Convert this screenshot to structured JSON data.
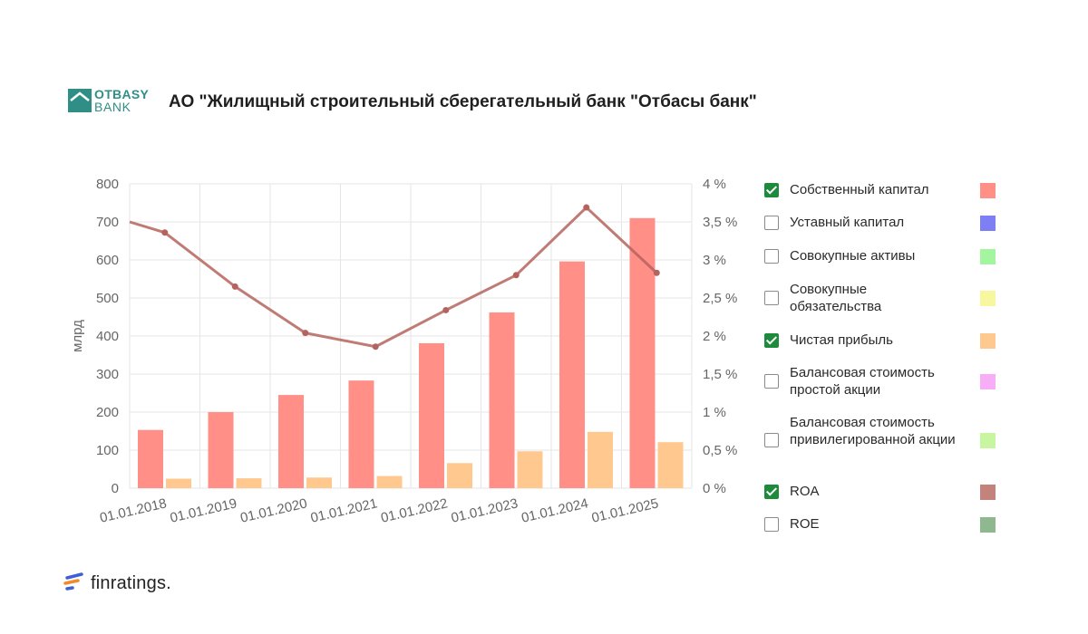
{
  "header": {
    "logo_line1": "OTBASY",
    "logo_line2": "BANK",
    "title": "АО \"Жилищный строительный сберегательный банк \"Отбасы банк\""
  },
  "legend": [
    {
      "label": "Собственный капитал",
      "checked": true,
      "color": "#ff8f87"
    },
    {
      "label": "Уставный капитал",
      "checked": false,
      "color": "#7f7ff5"
    },
    {
      "label": "Совокупные активы",
      "checked": false,
      "color": "#a3f5a0"
    },
    {
      "label": "Совокупные обязательства",
      "checked": false,
      "color": "#f7f7a0"
    },
    {
      "label": "Чистая прибыль",
      "checked": true,
      "color": "#ffc88f"
    },
    {
      "label": "Балансовая стоимость простой акции",
      "checked": false,
      "color": "#f7aef7"
    },
    {
      "label": "Балансовая стоимость привилегированной акции",
      "checked": false,
      "color": "#c8f5a0"
    },
    {
      "label": "ROA",
      "checked": true,
      "color": "#c4827c"
    },
    {
      "label": "ROE",
      "checked": false,
      "color": "#8fb890"
    }
  ],
  "footer": {
    "brand": "finratings."
  },
  "chart_data": {
    "type": "bar",
    "categories": [
      "01.01.2018",
      "01.01.2019",
      "01.01.2020",
      "01.01.2021",
      "01.01.2022",
      "01.01.2023",
      "01.01.2024",
      "01.01.2025"
    ],
    "ylabel": "млрд",
    "ylim": [
      0,
      800
    ],
    "yticks": [
      "0",
      "100",
      "200",
      "300",
      "400",
      "500",
      "600",
      "700",
      "800"
    ],
    "y2lim": [
      0,
      4
    ],
    "y2ticks": [
      "0 %",
      "0,5 %",
      "1 %",
      "1,5 %",
      "2 %",
      "2,5 %",
      "3 %",
      "3,5 %",
      "4 %"
    ],
    "grid": true,
    "series": [
      {
        "name": "Собственный капитал",
        "type": "bar",
        "axis": "left",
        "color": "#ff8f87",
        "values": [
          153,
          200,
          245,
          283,
          381,
          462,
          596,
          710
        ]
      },
      {
        "name": "Чистая прибыль",
        "type": "bar",
        "axis": "left",
        "color": "#ffc88f",
        "values": [
          25,
          26,
          28,
          32,
          66,
          97,
          148,
          121
        ]
      },
      {
        "name": "ROA",
        "type": "line",
        "axis": "right",
        "color": "#b5645d",
        "start": 3.5,
        "values": [
          3.36,
          2.65,
          2.04,
          1.86,
          2.34,
          2.8,
          3.69,
          2.83
        ]
      }
    ]
  }
}
